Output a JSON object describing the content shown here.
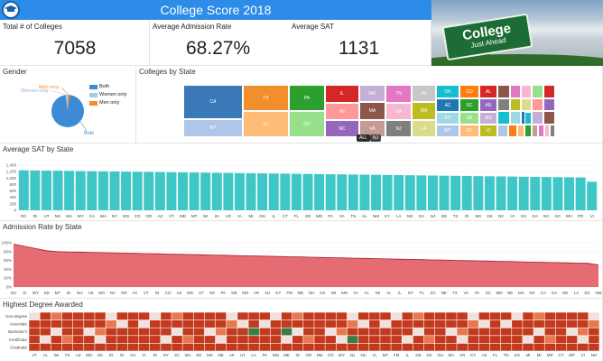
{
  "header": {
    "title": "College Score 2018"
  },
  "photo": {
    "sign_main": "College",
    "sign_sub": "Just Ahead"
  },
  "kpis": {
    "total_label": "Total # of Colleges",
    "total_value": "7058",
    "adm_label": "Average Admission Rate",
    "adm_value": "68.27%",
    "sat_label": "Average SAT",
    "sat_value": "1131"
  },
  "gender": {
    "title": "Gender",
    "legend": [
      "Both",
      "Women only",
      "Men only"
    ],
    "slice_labels": {
      "men": "Men only",
      "women": "Women only",
      "both": "Both"
    },
    "shares": {
      "both": 0.975,
      "women": 0.014,
      "men": 0.011
    },
    "colors": {
      "both": "#3c8bd4",
      "women": "#aec7e8",
      "men": "#f28e2b"
    }
  },
  "states_tree": {
    "title": "Colleges by State",
    "tiles": [
      "CA",
      "NY",
      "TX",
      "FL",
      "PA",
      "OH",
      "IL",
      "MI",
      "NC",
      "MO",
      "MA",
      "VA",
      "TN",
      "GA",
      "NJ",
      "IN",
      "WA",
      "LA",
      "OK",
      "AZ",
      "KY",
      "CO",
      "SC",
      "WI",
      "AL",
      "AR",
      "MS",
      "OR",
      "CT",
      "UT",
      "IA",
      "KS",
      "MN",
      "MD",
      "WV",
      "NM",
      "NE",
      "NV",
      "ME",
      "PR",
      "NH",
      "ID",
      "HI",
      "DE",
      "RI",
      "MT",
      "VT",
      "SD",
      "ND",
      "AK",
      "WY",
      "DC",
      "VI",
      "GU"
    ],
    "buttons": [
      "ALL",
      "NJ"
    ]
  },
  "sat": {
    "title": "Average SAT by State",
    "yticks": [
      "1,400",
      "1,200",
      "1,000",
      "800",
      "600",
      "400",
      "200",
      "0"
    ],
    "states": [
      "DC",
      "RI",
      "UT",
      "NH",
      "MA",
      "WY",
      "CA",
      "WA",
      "NY",
      "WS",
      "CO",
      "OR",
      "AZ",
      "VT",
      "MD",
      "MT",
      "WI",
      "IN",
      "AR",
      "IA",
      "MI",
      "OH",
      "IL",
      "CT",
      "FL",
      "SD",
      "MD",
      "PA",
      "VA",
      "TN",
      "AL",
      "NM",
      "KY",
      "LA",
      "ND",
      "GA",
      "NJ",
      "DE",
      "TX",
      "ID",
      "MS",
      "OK",
      "NV",
      "HI",
      "KS",
      "GA",
      "NC",
      "SC",
      "WV",
      "PR",
      "VI"
    ],
    "color": "#3fc7c7"
  },
  "adm": {
    "title": "Admission Rate by State",
    "yticks": [
      "100%",
      "80%",
      "60%",
      "40%",
      "20%",
      "0%"
    ],
    "states": [
      "GU",
      "VI",
      "WY",
      "SD",
      "MT",
      "ID",
      "NH",
      "AK",
      "WA",
      "NV",
      "OR",
      "HI",
      "VT",
      "IN",
      "CO",
      "AZ",
      "MS",
      "UT",
      "OK",
      "PA",
      "DE",
      "MO",
      "AR",
      "NJ",
      "KY",
      "FM",
      "ME",
      "OH",
      "KS",
      "WI",
      "MN",
      "VA",
      "AL",
      "MI",
      "AL",
      "IL",
      "NY",
      "FL",
      "SC",
      "NE",
      "TX",
      "VA",
      "RI",
      "SC",
      "MD",
      "NE",
      "MA",
      "NC",
      "CA",
      "GA",
      "DE",
      "LA",
      "DC",
      "NM"
    ],
    "color": "#e0525b"
  },
  "degrees": {
    "title": "Highest Degree Awarded",
    "rows": [
      "Non-degree",
      "Associate",
      "Bachelor's",
      "Certificate",
      "Graduate"
    ],
    "states": [
      "VT",
      "AL",
      "WI",
      "TX",
      "AZ",
      "MO",
      "OK",
      "ID",
      "IE",
      "GA",
      "IA",
      "RI",
      "NY",
      "SC",
      "WA",
      "SD",
      "MS",
      "NE",
      "AK",
      "UT",
      "LA",
      "PA",
      "WD",
      "ME",
      "ID",
      "OR",
      "NM",
      "CO",
      "WY",
      "NJ",
      "NC",
      "IA",
      "MT",
      "FM",
      "IL",
      "DE",
      "NV",
      "GU",
      "MA",
      "AR",
      "KY",
      "AZ",
      "FL",
      "TN",
      "KS",
      "MI",
      "MI",
      "MP",
      "CT",
      "WF",
      "VI",
      "NH"
    ],
    "color_hi": "#c2391d",
    "color_mid": "#e8794f",
    "color_lo": "#f0e1dd",
    "color_green": "#3a7d44"
  }
}
